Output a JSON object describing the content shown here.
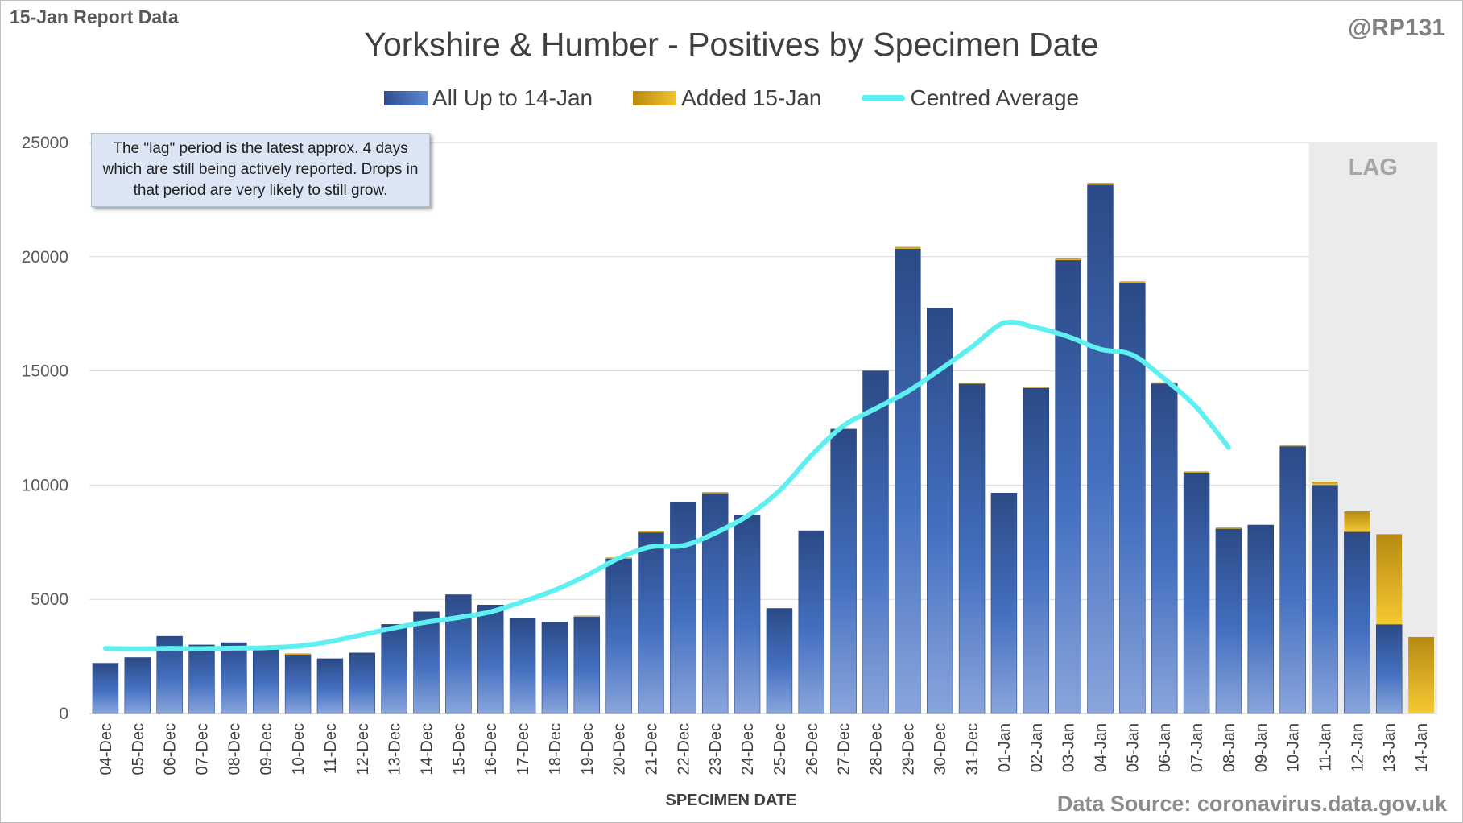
{
  "header": {
    "report_label": "15-Jan Report Data",
    "handle": "@RP131",
    "source": "Data Source: coronavirus.data.gov.uk",
    "note": "The \"lag\" period is the latest approx. 4 days which are still being actively reported.  Drops in that period are very likely to still grow.",
    "lag_label": "LAG"
  },
  "chart_data": {
    "type": "bar",
    "title": "Yorkshire & Humber - Positives by Specimen Date",
    "xlabel": "SPECIMEN DATE",
    "ylabel": "",
    "ylim": [
      0,
      25000
    ],
    "yticks": [
      "0",
      "5000",
      "10000",
      "15000",
      "20000",
      "25000"
    ],
    "grid": true,
    "legend_position": "top",
    "stacked": true,
    "categories": [
      "04-Dec",
      "05-Dec",
      "06-Dec",
      "07-Dec",
      "08-Dec",
      "09-Dec",
      "10-Dec",
      "11-Dec",
      "12-Dec",
      "13-Dec",
      "14-Dec",
      "15-Dec",
      "16-Dec",
      "17-Dec",
      "18-Dec",
      "19-Dec",
      "20-Dec",
      "21-Dec",
      "22-Dec",
      "23-Dec",
      "24-Dec",
      "25-Dec",
      "26-Dec",
      "27-Dec",
      "28-Dec",
      "29-Dec",
      "30-Dec",
      "31-Dec",
      "01-Jan",
      "02-Jan",
      "03-Jan",
      "04-Jan",
      "05-Jan",
      "06-Jan",
      "07-Jan",
      "08-Jan",
      "09-Jan",
      "10-Jan",
      "11-Jan",
      "12-Jan",
      "13-Jan",
      "14-Jan"
    ],
    "lag_categories": [
      "11-Jan",
      "12-Jan",
      "13-Jan",
      "14-Jan"
    ],
    "series": [
      {
        "name": "All Up to 14-Jan",
        "color": "#3a64b0",
        "values": [
          2200,
          2450,
          3380,
          3000,
          3100,
          2950,
          2600,
          2400,
          2650,
          3900,
          4450,
          5200,
          4750,
          4150,
          4000,
          4250,
          6800,
          7950,
          9250,
          9650,
          8700,
          4600,
          8000,
          12450,
          15000,
          20350,
          17750,
          14450,
          9650,
          14250,
          19850,
          23150,
          18850,
          14450,
          10550,
          8100,
          8250,
          11700,
          10000,
          7950,
          3900,
          0
        ]
      },
      {
        "name": "Added 15-Jan",
        "color": "#e0b020",
        "values": [
          0,
          0,
          0,
          0,
          0,
          0,
          30,
          0,
          0,
          0,
          0,
          0,
          0,
          0,
          0,
          30,
          30,
          30,
          0,
          40,
          0,
          0,
          0,
          0,
          0,
          80,
          0,
          40,
          0,
          60,
          70,
          80,
          70,
          50,
          50,
          40,
          0,
          50,
          150,
          900,
          3950,
          3350
        ]
      },
      {
        "name": "Centred Average",
        "color": "#5ef0f0",
        "type": "line",
        "values": [
          2850,
          2830,
          2850,
          2840,
          2860,
          2880,
          2950,
          3150,
          3450,
          3750,
          4000,
          4200,
          4450,
          4900,
          5400,
          6050,
          6800,
          7300,
          7350,
          7900,
          8650,
          9750,
          11300,
          12600,
          13350,
          14100,
          15050,
          16050,
          17100,
          16900,
          16500,
          15950,
          15700,
          14650,
          13400,
          11650,
          null,
          null,
          null,
          null,
          null,
          null
        ]
      }
    ]
  }
}
